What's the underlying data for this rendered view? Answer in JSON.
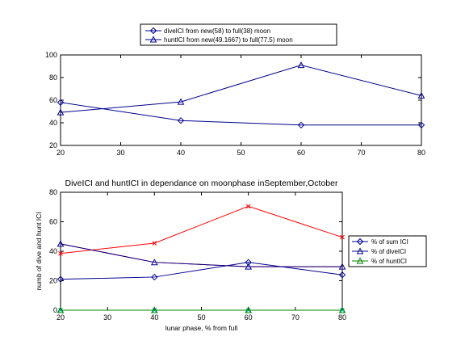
{
  "chart_data": [
    {
      "type": "line",
      "title": "",
      "xlabel": "",
      "ylabel": "",
      "x": [
        20,
        40,
        60,
        80
      ],
      "xlim": [
        20,
        80
      ],
      "ylim": [
        20,
        100
      ],
      "xticks": [
        "20",
        "30",
        "40",
        "50",
        "60",
        "70",
        "80"
      ],
      "yticks": [
        "20",
        "40",
        "60",
        "80",
        "100"
      ],
      "grid": false,
      "legend_position": "top-center",
      "series": [
        {
          "name": "diveICI from new(58) to full(38) moon",
          "values": [
            58,
            42,
            38,
            38
          ],
          "marker": "diamond",
          "color": "#00008f"
        },
        {
          "name": "huntICI from new(49.1667) to full(77.5) moon",
          "values": [
            49.2,
            58.5,
            91,
            64
          ],
          "marker": "triangle",
          "color": "#00008f"
        }
      ]
    },
    {
      "type": "line",
      "title": "DiveICI and huntICI in dependance on moonphase inSeptember,October",
      "xlabel": "lunar phase, % from full",
      "ylabel": "numb of dive and hunt ICI",
      "x": [
        20,
        40,
        60,
        80
      ],
      "xlim": [
        20,
        80
      ],
      "ylim": [
        0,
        80
      ],
      "xticks": [
        "20",
        "30",
        "40",
        "50",
        "60",
        "70",
        "80"
      ],
      "yticks": [
        "0",
        "20",
        "40",
        "60",
        "80"
      ],
      "grid": false,
      "legend_position": "right",
      "series": [
        {
          "name": "% of sum ICI",
          "values": [
            21,
            22.5,
            32.5,
            24
          ],
          "marker": "diamond",
          "color": "#00008f"
        },
        {
          "name": "% of diveICI",
          "values": [
            45,
            32.5,
            29.5,
            29.5
          ],
          "marker": "triangle",
          "color": "#00008f"
        },
        {
          "name": "% of huntICI",
          "values": [
            0,
            0,
            0,
            0
          ],
          "marker": "triangle",
          "color": "#008000"
        }
      ],
      "extra_lines": [
        {
          "values": [
            38.5,
            45.5,
            70.5,
            49.5
          ],
          "marker": "x",
          "color": "#ff0000"
        },
        {
          "values": [
            45,
            32.5,
            29.5,
            29.5
          ],
          "marker": "none",
          "color": "#ff0000"
        },
        {
          "values": [
            0,
            0,
            0,
            0
          ],
          "marker": "x",
          "color": "#00bfbf"
        }
      ]
    }
  ]
}
